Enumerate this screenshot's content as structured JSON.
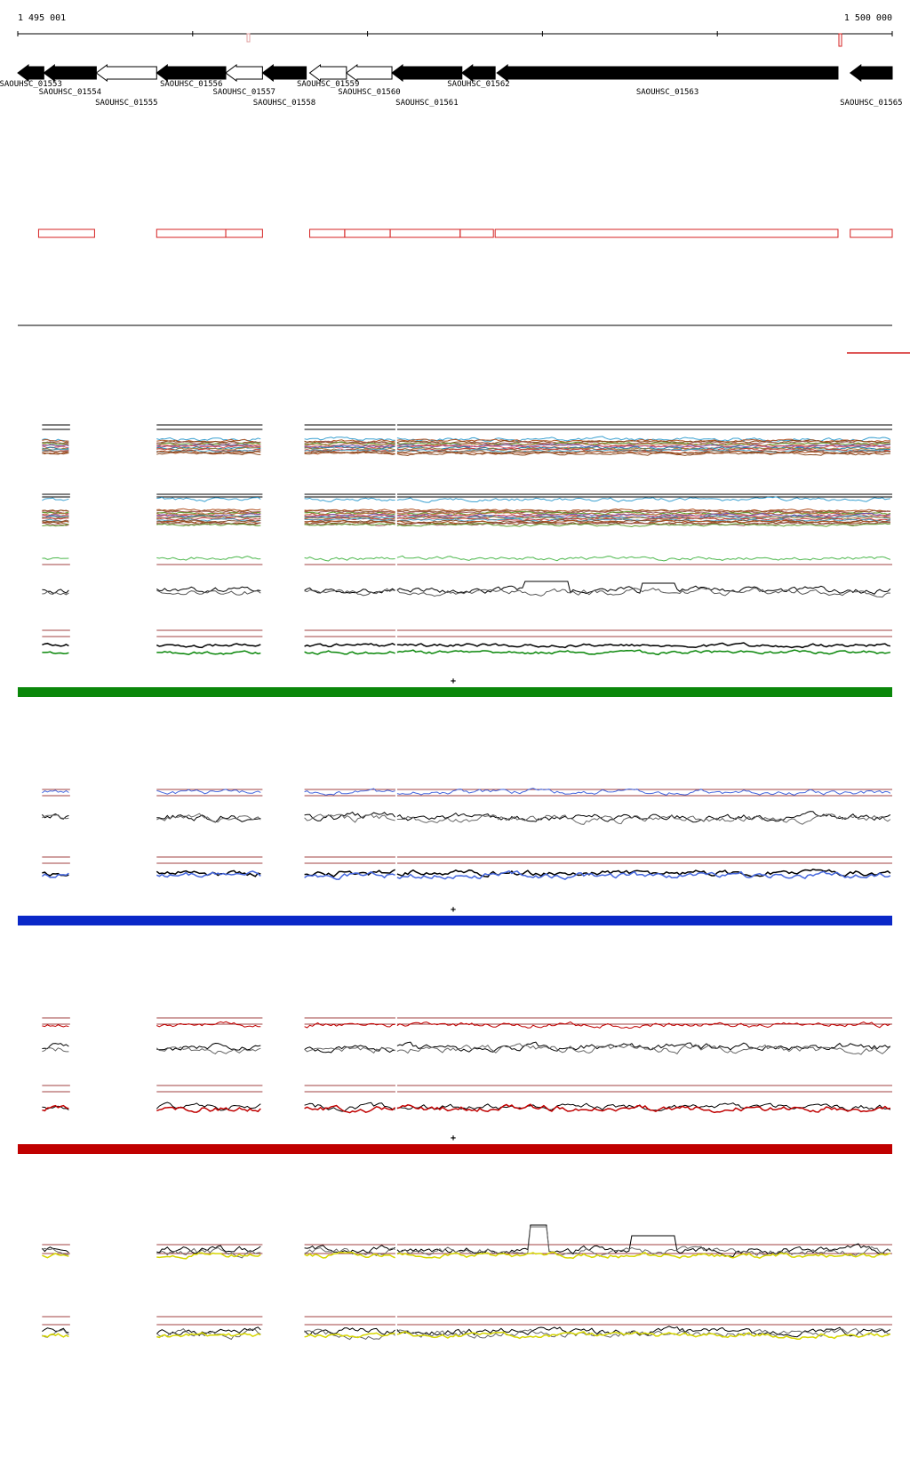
{
  "axis": {
    "start_label": "1 495 001",
    "end_label": "1 500 000",
    "start": 1495001,
    "end": 1500000
  },
  "genes": [
    {
      "id": "SAOUHSC_01553",
      "start": 1495001,
      "end": 1495150,
      "strand": "-",
      "fill": "black"
    },
    {
      "id": "SAOUHSC_01554",
      "start": 1495150,
      "end": 1495450,
      "strand": "-",
      "fill": "black"
    },
    {
      "id": "SAOUHSC_01555",
      "start": 1495450,
      "end": 1495795,
      "strand": "-",
      "fill": "white"
    },
    {
      "id": "SAOUHSC_01556",
      "start": 1495795,
      "end": 1496190,
      "strand": "-",
      "fill": "black"
    },
    {
      "id": "SAOUHSC_01557",
      "start": 1496190,
      "end": 1496400,
      "strand": "-",
      "fill": "white"
    },
    {
      "id": "SAOUHSC_01558",
      "start": 1496400,
      "end": 1496650,
      "strand": "-",
      "fill": "black"
    },
    {
      "id": "SAOUHSC_01559",
      "start": 1496670,
      "end": 1496880,
      "strand": "-",
      "fill": "white"
    },
    {
      "id": "SAOUHSC_01560",
      "start": 1496880,
      "end": 1497140,
      "strand": "-",
      "fill": "white"
    },
    {
      "id": "SAOUHSC_01561",
      "start": 1497140,
      "end": 1497540,
      "strand": "-",
      "fill": "black"
    },
    {
      "id": "SAOUHSC_01562",
      "start": 1497540,
      "end": 1497730,
      "strand": "-",
      "fill": "black"
    },
    {
      "id": "SAOUHSC_01563",
      "start": 1497740,
      "end": 1499690,
      "strand": "-",
      "fill": "black"
    },
    {
      "id": "SAOUHSC_01565",
      "start": 1499760,
      "end": 1500000,
      "strand": "-",
      "fill": "black"
    }
  ],
  "operon_boxes": [
    {
      "start": 1495120,
      "end": 1495440
    },
    {
      "start": 1495795,
      "end": 1496190
    },
    {
      "start": 1496190,
      "end": 1496400
    },
    {
      "start": 1496670,
      "end": 1496870
    },
    {
      "start": 1496870,
      "end": 1497130
    },
    {
      "start": 1497130,
      "end": 1497530
    },
    {
      "start": 1497530,
      "end": 1497720
    },
    {
      "start": 1497730,
      "end": 1499690
    },
    {
      "start": 1499760,
      "end": 1500000
    }
  ],
  "data_segments": [
    {
      "start": 1495140,
      "end": 1495300
    },
    {
      "start": 1495795,
      "end": 1496400
    },
    {
      "start": 1496640,
      "end": 1497160
    },
    {
      "start": 1497170,
      "end": 1500000
    }
  ],
  "colors": {
    "gene_fill": "#000000",
    "operon": "#d42020",
    "green": "#0a870a",
    "blue": "#0a28c8",
    "red": "#c00000",
    "yellow": "#d6d600",
    "light_green": "#4db84d",
    "light_blue": "#4466dd",
    "ref": "#a04040"
  },
  "panels": [
    {
      "name": "green",
      "bar_color": "#0a870a",
      "marker": "+"
    },
    {
      "name": "blue",
      "bar_color": "#0a28c8",
      "marker": "+"
    },
    {
      "name": "red",
      "bar_color": "#c00000",
      "marker": "+"
    }
  ]
}
